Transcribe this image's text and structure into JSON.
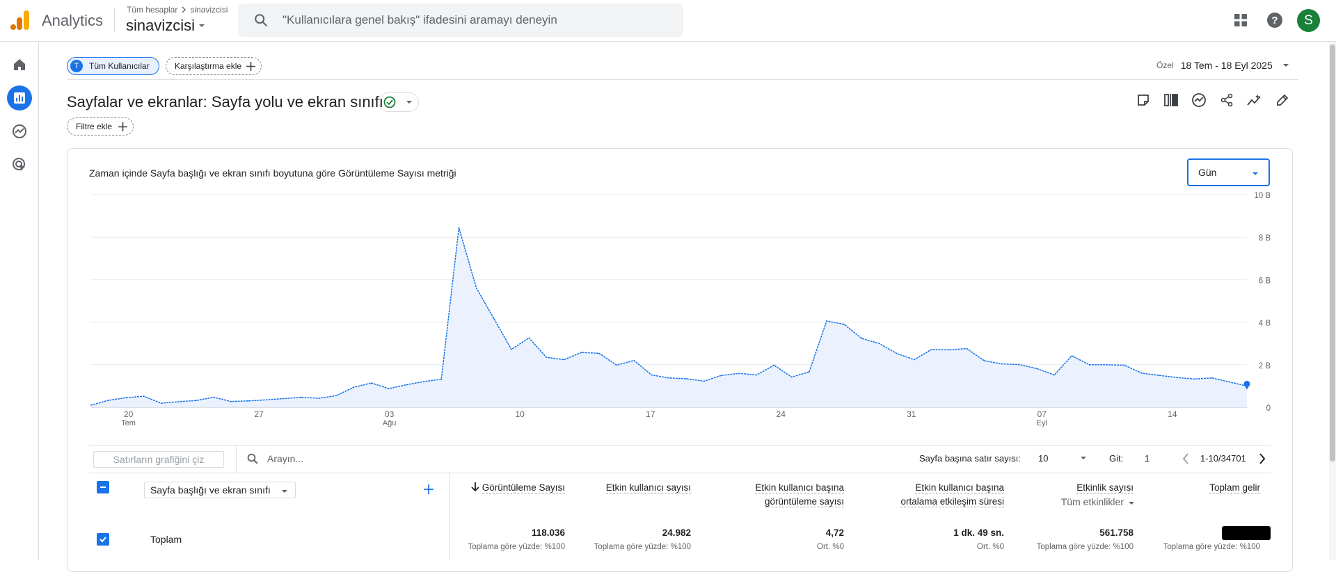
{
  "header": {
    "app_name": "Analytics",
    "breadcrumb_all": "Tüm hesaplar",
    "breadcrumb_account": "sinavizcisi",
    "account_name": "sinavizcisi",
    "search_placeholder": "\"Kullanıcılara genel bakış\" ifadesini aramayı deneyin",
    "avatar_letter": "S",
    "icons": [
      "apps-grid-icon",
      "help-icon"
    ],
    "brand_colors": {
      "logo_orange": "#f9ab00",
      "logo_dark": "#e37400",
      "avatar": "#188038",
      "accent": "#1a73e8"
    }
  },
  "sidenav": {
    "items": [
      {
        "name": "home-icon",
        "active": false
      },
      {
        "name": "reports-icon",
        "active": true
      },
      {
        "name": "explore-icon",
        "active": false
      },
      {
        "name": "advertising-icon",
        "active": false
      }
    ]
  },
  "comparison": {
    "all_users_badge": "T",
    "all_users": "Tüm Kullanıcılar",
    "add_comparison": "Karşılaştırma ekle"
  },
  "date": {
    "label": "Özel",
    "range": "18 Tem - 18 Eyl 2025"
  },
  "report": {
    "title": "Sayfalar ve ekranlar: Sayfa yolu ve ekran sınıfı",
    "add_filter": "Filtre ekle",
    "toolbar_icons": [
      "note-icon",
      "compare-icon",
      "insights-icon",
      "share-icon",
      "trend-icon",
      "edit-icon"
    ]
  },
  "chart": {
    "title": "Zaman içinde Sayfa başlığı ve ekran sınıfı boyutuna göre Görüntüleme Sayısı metriği",
    "granularity": "Gün"
  },
  "chart_data": {
    "type": "area",
    "title": "Zaman içinde Sayfa başlığı ve ekran sınıfı boyutuna göre Görüntüleme Sayısı metriği",
    "x_start": "2025-07-18",
    "x_end": "2025-09-18",
    "x_ticks": [
      {
        "date": "2025-07-20",
        "label": "20",
        "sub": "Tem"
      },
      {
        "date": "2025-07-27",
        "label": "27",
        "sub": ""
      },
      {
        "date": "2025-08-03",
        "label": "03",
        "sub": "Ağu"
      },
      {
        "date": "2025-08-10",
        "label": "10",
        "sub": ""
      },
      {
        "date": "2025-08-17",
        "label": "17",
        "sub": ""
      },
      {
        "date": "2025-08-24",
        "label": "24",
        "sub": ""
      },
      {
        "date": "2025-08-31",
        "label": "31",
        "sub": ""
      },
      {
        "date": "2025-09-07",
        "label": "07",
        "sub": "Eyl"
      },
      {
        "date": "2025-09-14",
        "label": "14",
        "sub": ""
      }
    ],
    "y_ticks": [
      {
        "value": 0,
        "label": "0"
      },
      {
        "value": 2000,
        "label": "2 B"
      },
      {
        "value": 4000,
        "label": "4 B"
      },
      {
        "value": 6000,
        "label": "6 B"
      },
      {
        "value": 8000,
        "label": "8 B"
      },
      {
        "value": 10000,
        "label": "10 B"
      }
    ],
    "ylim": [
      0,
      10000
    ],
    "grid": true,
    "line_color": "#1a73e8",
    "fill_color": "#e8f0fe",
    "series": [
      {
        "name": "",
        "values": [
          100,
          330,
          450,
          520,
          190,
          260,
          320,
          470,
          270,
          300,
          350,
          410,
          470,
          420,
          550,
          940,
          1140,
          880,
          1060,
          1210,
          1320,
          8440,
          5600,
          4170,
          2720,
          3260,
          2350,
          2240,
          2580,
          2540,
          1980,
          2200,
          1520,
          1380,
          1340,
          1230,
          1500,
          1590,
          1520,
          1980,
          1420,
          1660,
          4060,
          3900,
          3240,
          3000,
          2530,
          2240,
          2720,
          2700,
          2760,
          2190,
          2040,
          2010,
          1820,
          1520,
          2420,
          2000,
          2000,
          1980,
          1600,
          1500,
          1400,
          1330,
          1380,
          1190,
          1000
        ]
      }
    ]
  },
  "table": {
    "plot_rows": "Satırların grafiğini çiz",
    "search_placeholder": "Arayın...",
    "rows_per_page_label": "Sayfa başına satır sayısı:",
    "rows_per_page_value": "10",
    "goto_label": "Git:",
    "goto_value": "1",
    "pagination": "1-10/34701",
    "dimension": "Sayfa başlığı ve ekran sınıfı",
    "columns": [
      {
        "line1": "Görüntüleme Sayısı",
        "line2": "",
        "sorted": true
      },
      {
        "line1": "Etkin kullanıcı sayısı",
        "line2": ""
      },
      {
        "line1": "Etkin kullanıcı başına",
        "line2": "görüntüleme sayısı"
      },
      {
        "line1": "Etkin kullanıcı başına",
        "line2": "ortalama etkileşim süresi"
      },
      {
        "line1": "Etkinlik sayısı",
        "line2": "",
        "sub_select": "Tüm etkinlikler"
      },
      {
        "line1": "Toplam gelir",
        "line2": ""
      }
    ],
    "total_label": "Toplam",
    "totals": [
      {
        "value": "118.036",
        "sub": "Toplama göre yüzde: %100"
      },
      {
        "value": "24.982",
        "sub": "Toplama göre yüzde: %100"
      },
      {
        "value": "4,72",
        "sub": "Ort. %0"
      },
      {
        "value": "1 dk. 49 sn.",
        "sub": "Ort. %0"
      },
      {
        "value": "561.758",
        "sub": "Toplama göre yüzde: %100"
      },
      {
        "value": "",
        "sub": "Toplama göre yüzde: %100"
      }
    ]
  }
}
